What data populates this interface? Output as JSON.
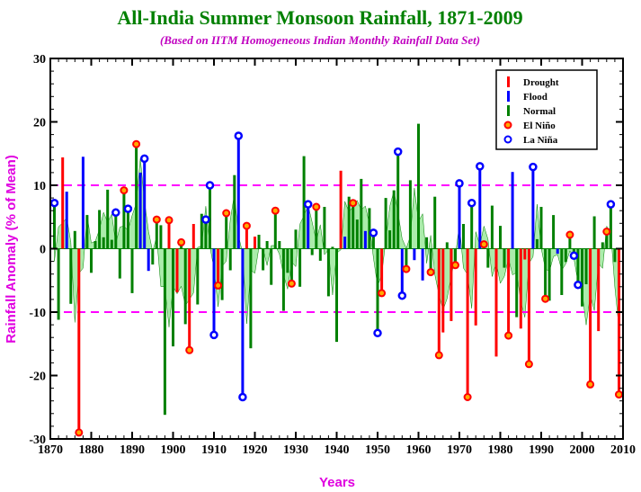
{
  "page": {
    "title": "All-India Summer Monsoon Rainfall, 1871-2009",
    "subtitle": "(Based on IITM Homogeneous Indian Monthly Rainfall Data Set)"
  },
  "colors": {
    "title": "#008000",
    "subtitle": "#c000c0",
    "axis_label": "#e000e0",
    "drought": "#ff0000",
    "flood": "#0000ff",
    "normal": "#008000",
    "smooth_fill": "#66dd66",
    "threshold_line": "#ff00ff",
    "elnino_fill": "#ffaa00",
    "elnino_stroke": "#ff0000",
    "lanina_fill": "#ffffff",
    "lanina_stroke": "#0000ff"
  },
  "chart_data": {
    "type": "bar",
    "title": "All-India Summer Monsoon Rainfall, 1871-2009",
    "subtitle": "(Based on IITM Homogeneous Indian Monthly Rainfall Data Set)",
    "xlabel": "Years",
    "ylabel": "Rainfall Anomaly (% of Mean)",
    "xlim": [
      1870,
      2010
    ],
    "ylim": [
      -30,
      30
    ],
    "x_ticks": [
      1870,
      1880,
      1890,
      1900,
      1910,
      1920,
      1930,
      1940,
      1950,
      1960,
      1970,
      1980,
      1990,
      2000,
      2010
    ],
    "y_ticks": [
      -30,
      -20,
      -10,
      0,
      10,
      20,
      30
    ],
    "threshold_lines": [
      10,
      -10
    ],
    "grid": false,
    "legend_position": "top-right",
    "legend": [
      {
        "key": "drought",
        "label": "Drought",
        "marker": "bar"
      },
      {
        "key": "flood",
        "label": "Flood",
        "marker": "bar"
      },
      {
        "key": "normal",
        "label": "Normal",
        "marker": "bar"
      },
      {
        "key": "elnino",
        "label": "El Niño",
        "marker": "circle"
      },
      {
        "key": "lanina",
        "label": "La Niña",
        "marker": "circle"
      }
    ],
    "years": [
      1871,
      1872,
      1873,
      1874,
      1875,
      1876,
      1877,
      1878,
      1879,
      1880,
      1881,
      1882,
      1883,
      1884,
      1885,
      1886,
      1887,
      1888,
      1889,
      1890,
      1891,
      1892,
      1893,
      1894,
      1895,
      1896,
      1897,
      1898,
      1899,
      1900,
      1901,
      1902,
      1903,
      1904,
      1905,
      1906,
      1907,
      1908,
      1909,
      1910,
      1911,
      1912,
      1913,
      1914,
      1915,
      1916,
      1917,
      1918,
      1919,
      1920,
      1921,
      1922,
      1923,
      1924,
      1925,
      1926,
      1927,
      1928,
      1929,
      1930,
      1931,
      1932,
      1933,
      1934,
      1935,
      1936,
      1937,
      1938,
      1939,
      1940,
      1941,
      1942,
      1943,
      1944,
      1945,
      1946,
      1947,
      1948,
      1949,
      1950,
      1951,
      1952,
      1953,
      1954,
      1955,
      1956,
      1957,
      1958,
      1959,
      1960,
      1961,
      1962,
      1963,
      1964,
      1965,
      1966,
      1967,
      1968,
      1969,
      1970,
      1971,
      1972,
      1973,
      1974,
      1975,
      1976,
      1977,
      1978,
      1979,
      1980,
      1981,
      1982,
      1983,
      1984,
      1985,
      1986,
      1987,
      1988,
      1989,
      1990,
      1991,
      1992,
      1993,
      1994,
      1995,
      1996,
      1997,
      1998,
      1999,
      2000,
      2001,
      2002,
      2003,
      2004,
      2005,
      2006,
      2007,
      2008,
      2009
    ],
    "anomaly": [
      7.2,
      -11.2,
      14.4,
      9.0,
      -8.7,
      2.8,
      -29.0,
      14.5,
      5.3,
      -3.8,
      1.2,
      6.1,
      1.8,
      9.3,
      1.4,
      5.7,
      -4.7,
      9.2,
      6.3,
      -7.0,
      16.5,
      12.0,
      14.2,
      -3.5,
      -2.5,
      4.6,
      3.7,
      -26.2,
      4.5,
      -15.4,
      -6.9,
      1.0,
      -11.9,
      -16.0,
      3.9,
      -8.8,
      5.5,
      4.6,
      10.0,
      -13.6,
      -5.8,
      -8.1,
      5.6,
      -3.4,
      11.6,
      17.8,
      -23.4,
      3.6,
      -15.7,
      1.9,
      2.2,
      -3.4,
      1.2,
      -5.7,
      6.0,
      1.2,
      -9.8,
      -3.8,
      -5.5,
      3.0,
      -6.0,
      14.6,
      7.0,
      -1.0,
      6.6,
      -1.9,
      6.6,
      -7.5,
      0.3,
      -14.7,
      12.3,
      1.9,
      8.2,
      7.2,
      4.6,
      11.0,
      2.8,
      6.4,
      2.5,
      -13.3,
      -7.0,
      8.0,
      2.9,
      9.2,
      15.3,
      -7.4,
      -3.2,
      10.8,
      -1.8,
      19.7,
      -5.0,
      1.8,
      -3.7,
      8.2,
      -16.8,
      -13.2,
      1.0,
      -11.4,
      -2.6,
      10.3,
      3.9,
      -23.4,
      7.2,
      -12.1,
      13.0,
      0.7,
      -3.0,
      6.8,
      -17.0,
      3.6,
      -3.0,
      -13.7,
      12.1,
      -10.8,
      -12.6,
      -1.7,
      -18.2,
      12.9,
      1.5,
      6.6,
      -7.9,
      -8.2,
      5.3,
      -0.8,
      -7.3,
      -2.1,
      2.2,
      -1.1,
      -5.7,
      -9.1,
      -5.6,
      -21.4,
      5.1,
      -13.0,
      1.0,
      2.7,
      7.0,
      -2.1,
      -23.0
    ],
    "drought_years": [
      1873,
      1877,
      1899,
      1901,
      1904,
      1905,
      1911,
      1918,
      1920,
      1941,
      1951,
      1965,
      1966,
      1968,
      1972,
      1974,
      1979,
      1982,
      1985,
      1986,
      1987,
      2002,
      2004,
      2009
    ],
    "flood_years": [
      1874,
      1878,
      1892,
      1893,
      1894,
      1910,
      1916,
      1917,
      1933,
      1942,
      1947,
      1956,
      1959,
      1961,
      1970,
      1975,
      1983,
      1988,
      1994
    ],
    "elnino_years": [
      1877,
      1888,
      1891,
      1896,
      1899,
      1902,
      1904,
      1911,
      1913,
      1918,
      1925,
      1929,
      1935,
      1944,
      1951,
      1957,
      1963,
      1965,
      1969,
      1972,
      1976,
      1982,
      1987,
      1991,
      1997,
      2002,
      2006,
      2009
    ],
    "lanina_years": [
      1871,
      1886,
      1889,
      1893,
      1908,
      1909,
      1910,
      1916,
      1917,
      1933,
      1949,
      1950,
      1955,
      1956,
      1970,
      1973,
      1975,
      1988,
      1998,
      1999,
      2007
    ]
  }
}
